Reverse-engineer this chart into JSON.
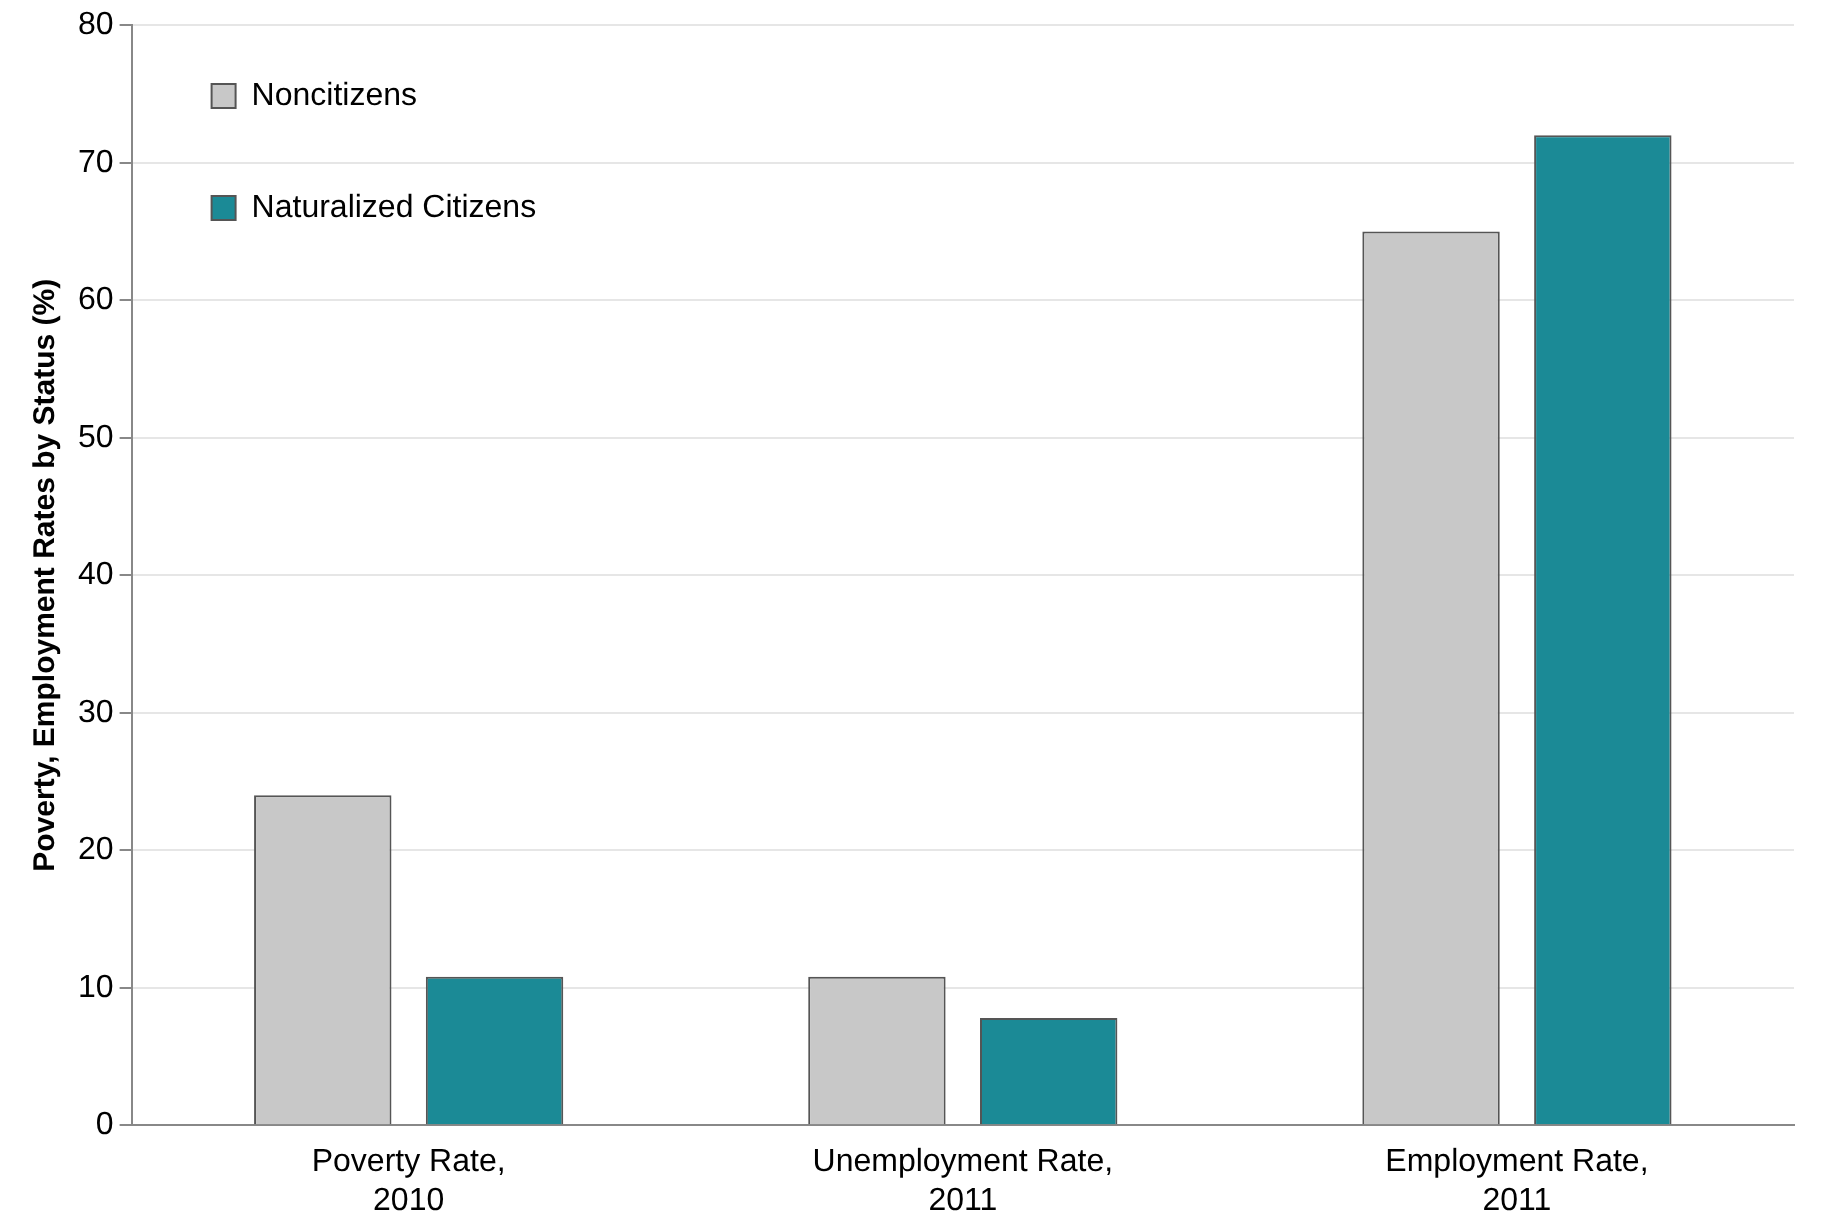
{
  "chart_data": {
    "type": "bar",
    "ylabel": "Poverty, Employment Rates by Status (%)",
    "categories": [
      "Poverty Rate, 2010",
      "Unemployment Rate, 2011",
      "Employment Rate, 2011"
    ],
    "series": [
      {
        "name": "Noncitizens",
        "color": "#c8c8c8",
        "values": [
          24,
          10.8,
          65
        ]
      },
      {
        "name": "Naturalized Citizens",
        "color": "#1b8a96",
        "values": [
          10.8,
          7.8,
          72
        ]
      }
    ],
    "ylim": [
      0,
      80
    ],
    "yticks": [
      0,
      10,
      20,
      30,
      40,
      50,
      60,
      70,
      80
    ],
    "grid": "y",
    "legend": "top left"
  }
}
